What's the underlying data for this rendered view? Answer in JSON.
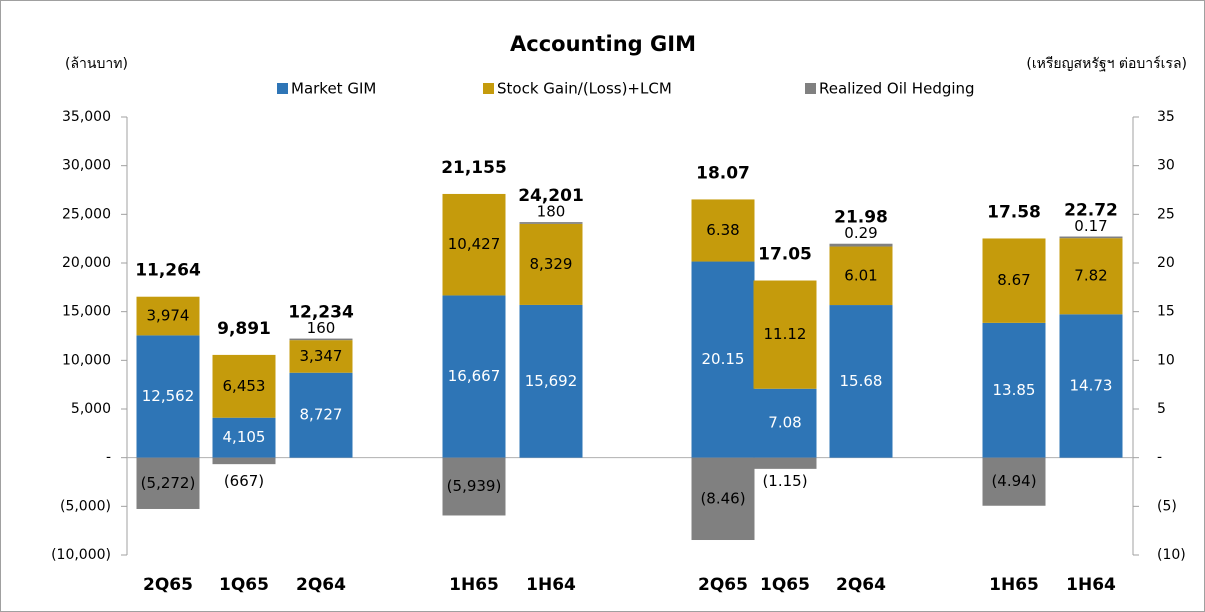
{
  "chart_data": {
    "type": "stacked_bar",
    "title": "Accounting GIM",
    "ylabel": "(ล้านบาท)",
    "y2label": "(เหรียญสหรัฐฯ ต่อบาร์เรล)",
    "categories": [
      "2Q65",
      "1Q65",
      "2Q64",
      "1H65",
      "1H64",
      "2Q65",
      "1Q65",
      "2Q64",
      "1H65",
      "1H64"
    ],
    "axes": [
      "y",
      "y",
      "y",
      "y",
      "y",
      "y2",
      "y2",
      "y2",
      "y2",
      "y2"
    ],
    "series": [
      {
        "name": "Market GIM",
        "color": "#2e75b6",
        "label_color": "#ffffff",
        "values": [
          12562,
          4105,
          8727,
          16667,
          15692,
          20.15,
          7.08,
          15.68,
          13.85,
          14.73
        ],
        "value_labels": [
          "12,562",
          "4,105",
          "8,727",
          "16,667",
          "15,692",
          "20.15",
          "7.08",
          "15.68",
          "13.85",
          "14.73"
        ]
      },
      {
        "name": "Stock Gain/(Loss)+LCM",
        "color": "#c59b0c",
        "label_color": "#000000",
        "values": [
          3974,
          6453,
          3347,
          10427,
          8329,
          6.38,
          11.12,
          6.01,
          8.67,
          7.82
        ],
        "value_labels": [
          "3,974",
          "6,453",
          "3,347",
          "10,427",
          "8,329",
          "6.38",
          "11.12",
          "6.01",
          "8.67",
          "7.82"
        ]
      },
      {
        "name": "Realized Oil Hedging",
        "color": "#808080",
        "label_color": "#000000",
        "values": [
          -5272,
          -667,
          160,
          -5939,
          180,
          -8.46,
          -1.15,
          0.29,
          -4.94,
          0.17
        ],
        "value_labels": [
          "(5,272)",
          "(667)",
          "160",
          "(5,939)",
          "180",
          "(8.46)",
          "(1.15)",
          "0.29",
          "(4.94)",
          "0.17"
        ]
      }
    ],
    "totals": {
      "values": [
        11264,
        9891,
        12234,
        21155,
        24201,
        18.07,
        17.05,
        21.98,
        17.58,
        22.72
      ],
      "value_labels": [
        "11,264",
        "9,891",
        "12,234",
        "21,155",
        "24,201",
        "18.07",
        "17.05",
        "21.98",
        "17.58",
        "22.72"
      ]
    },
    "ylim": [
      -10000,
      35000
    ],
    "yticks": [
      {
        "value": -10000,
        "label": "(10,000)"
      },
      {
        "value": -5000,
        "label": "(5,000)"
      },
      {
        "value": 0,
        "label": "-"
      },
      {
        "value": 5000,
        "label": "5,000"
      },
      {
        "value": 10000,
        "label": "10,000"
      },
      {
        "value": 15000,
        "label": "15,000"
      },
      {
        "value": 20000,
        "label": "20,000"
      },
      {
        "value": 25000,
        "label": "25,000"
      },
      {
        "value": 30000,
        "label": "30,000"
      },
      {
        "value": 35000,
        "label": "35,000"
      }
    ],
    "y2lim": [
      -10,
      35
    ],
    "y2ticks": [
      {
        "value": -10,
        "label": "(10)"
      },
      {
        "value": -5,
        "label": "(5)"
      },
      {
        "value": 0,
        "label": "-"
      },
      5,
      10,
      15,
      20,
      25,
      30,
      35
    ],
    "legend": "top"
  }
}
